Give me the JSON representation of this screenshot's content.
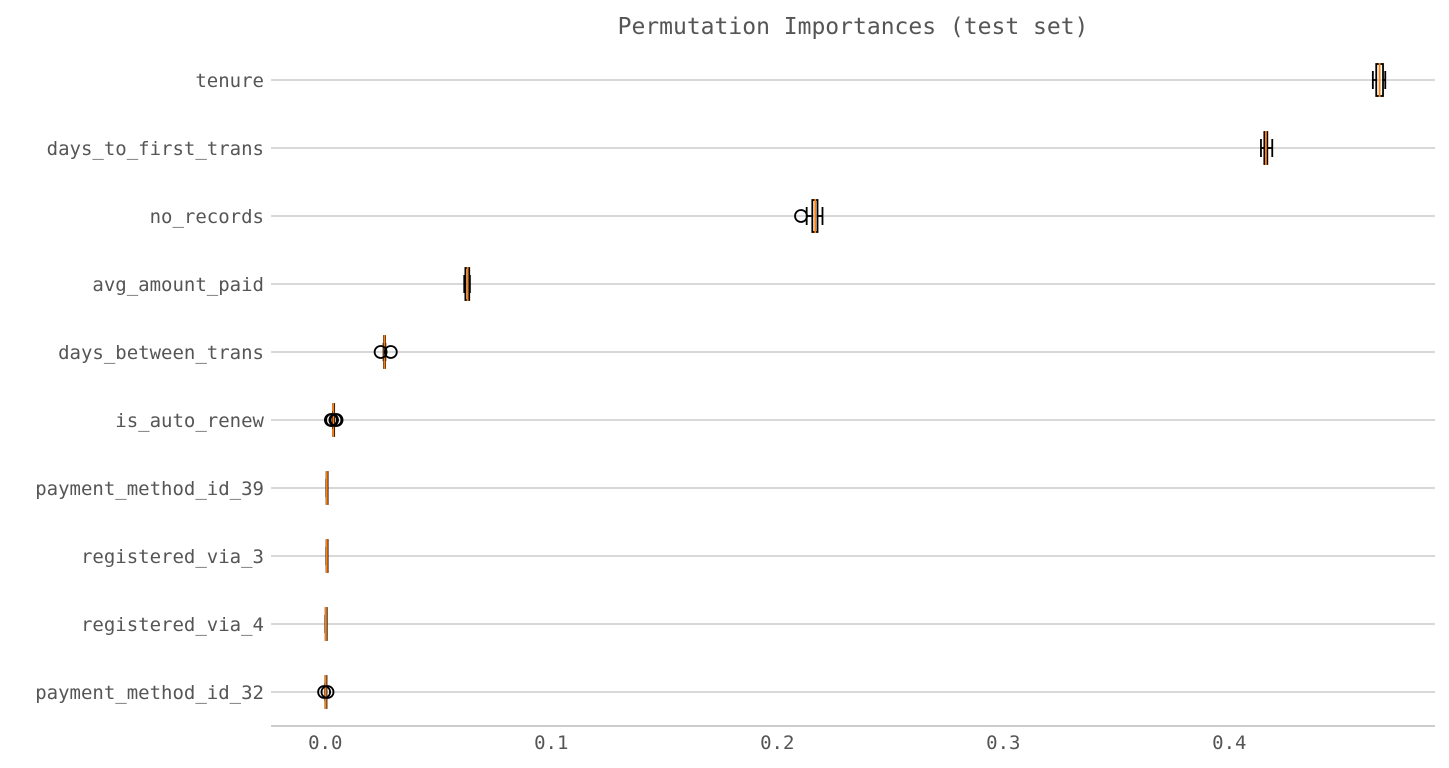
{
  "chart_data": {
    "type": "boxplot",
    "orientation": "horizontal",
    "title": "Permutation Importances (test set)",
    "xlabel": "",
    "ylabel": "",
    "xlim": [
      -0.024,
      0.491
    ],
    "x_ticks": [
      0.0,
      0.1,
      0.2,
      0.3,
      0.4
    ],
    "x_tick_labels": [
      "0.0",
      "0.1",
      "0.2",
      "0.3",
      "0.4"
    ],
    "grid": "horizontal",
    "colors": {
      "box": "#000000",
      "median": "#ff7f0e",
      "grid": "#cccccc",
      "text": "#555555"
    },
    "categories": [
      "tenure",
      "days_to_first_trans",
      "no_records",
      "avg_amount_paid",
      "days_between_trans",
      "is_auto_renew",
      "payment_method_id_39",
      "registered_via_3",
      "registered_via_4",
      "payment_method_id_32"
    ],
    "boxes": [
      {
        "whislo": 0.4635,
        "q1": 0.465,
        "med": 0.4665,
        "q3": 0.468,
        "whishi": 0.469,
        "fliers": []
      },
      {
        "whislo": 0.414,
        "q1": 0.4155,
        "med": 0.4162,
        "q3": 0.4168,
        "whishi": 0.419,
        "fliers": []
      },
      {
        "whislo": 0.213,
        "q1": 0.2155,
        "med": 0.2168,
        "q3": 0.2178,
        "whishi": 0.22,
        "fliers": [
          0.2105
        ]
      },
      {
        "whislo": 0.0615,
        "q1": 0.062,
        "med": 0.063,
        "q3": 0.0637,
        "whishi": 0.064,
        "fliers": []
      },
      {
        "whislo": 0.0258,
        "q1": 0.026,
        "med": 0.0262,
        "q3": 0.0264,
        "whishi": 0.0266,
        "fliers": [
          0.0245,
          0.029
        ]
      },
      {
        "whislo": 0.0034,
        "q1": 0.0035,
        "med": 0.0036,
        "q3": 0.0037,
        "whishi": 0.0038,
        "fliers": [
          0.0025,
          0.003,
          0.0045,
          0.005
        ]
      },
      {
        "whislo": 0.0005,
        "q1": 0.0006,
        "med": 0.0007,
        "q3": 0.0008,
        "whishi": 0.0009,
        "fliers": []
      },
      {
        "whislo": 0.0005,
        "q1": 0.0006,
        "med": 0.0007,
        "q3": 0.0008,
        "whishi": 0.0009,
        "fliers": []
      },
      {
        "whislo": 0.0001,
        "q1": 0.0002,
        "med": 0.0003,
        "q3": 0.0004,
        "whishi": 0.0005,
        "fliers": []
      },
      {
        "whislo": 0.0,
        "q1": 0.0001,
        "med": 0.0002,
        "q3": 0.0003,
        "whishi": 0.0004,
        "fliers": [
          -0.0005,
          0.001
        ]
      }
    ]
  }
}
